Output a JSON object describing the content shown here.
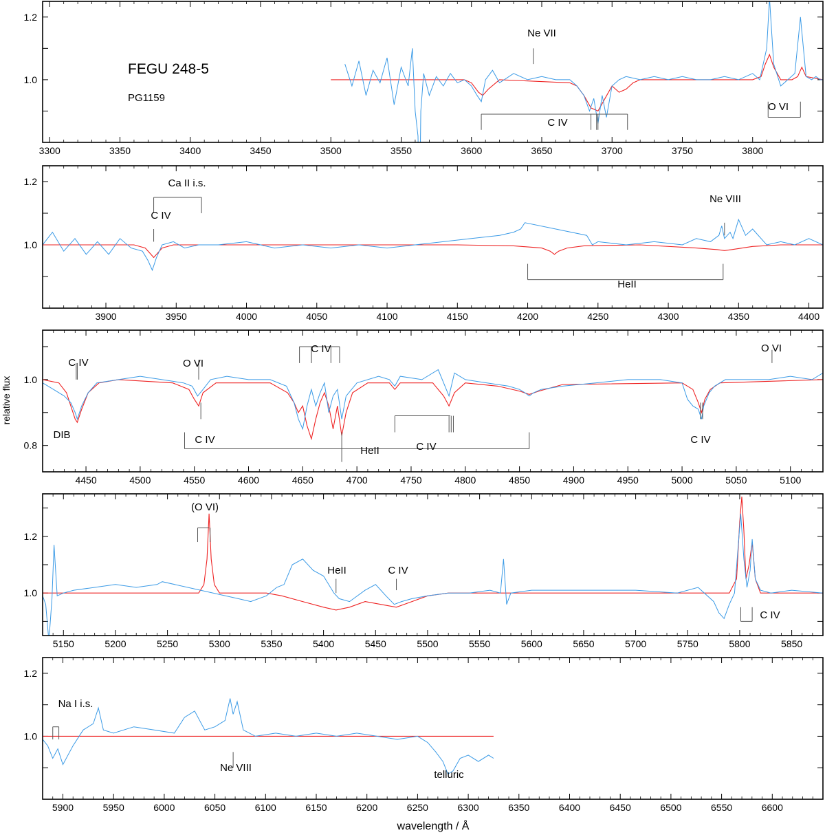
{
  "figure": {
    "star_name": "FEGU 248-5",
    "star_class": "PG1159",
    "ylabel": "relative flux",
    "xlabel": "wavelength / Å",
    "colors": {
      "observed": "#3a9ae6",
      "model": "#ee2222",
      "marker": "#555555",
      "axis": "#000000"
    }
  },
  "chart_data": [
    {
      "type": "line",
      "panel": 1,
      "xlim": [
        3295,
        3850
      ],
      "ylim": [
        0.8,
        1.25
      ],
      "xticks": [
        3300,
        3350,
        3400,
        3450,
        3500,
        3550,
        3600,
        3650,
        3700,
        3750,
        3800
      ],
      "yticks": [
        1.0,
        1.2
      ],
      "ytick_labels": [
        "1.0",
        "1.2"
      ],
      "series": [],
      "observed": {
        "x": [
          3510,
          3515,
          3520,
          3525,
          3530,
          3535,
          3540,
          3545,
          3550,
          3555,
          3558,
          3560,
          3562,
          3563,
          3564,
          3566,
          3570,
          3575,
          3580,
          3585,
          3590,
          3595,
          3600,
          3604,
          3607,
          3610,
          3615,
          3620,
          3630,
          3640,
          3650,
          3660,
          3670,
          3675,
          3680,
          3684,
          3687,
          3690,
          3693,
          3696,
          3700,
          3705,
          3710,
          3720,
          3730,
          3740,
          3750,
          3760,
          3770,
          3780,
          3790,
          3800,
          3805,
          3810,
          3812,
          3815,
          3820,
          3825,
          3830,
          3834,
          3838,
          3842,
          3845,
          3848,
          3850
        ],
        "y": [
          1.05,
          0.98,
          1.06,
          0.95,
          1.03,
          0.99,
          1.07,
          0.92,
          1.04,
          0.98,
          1.1,
          0.9,
          0.82,
          0.55,
          0.9,
          1.02,
          0.95,
          1.01,
          0.98,
          1.02,
          0.99,
          1.0,
          0.98,
          0.95,
          0.93,
          1.0,
          1.03,
          0.99,
          1.02,
          1.0,
          1.01,
          1.0,
          1.0,
          0.98,
          0.95,
          0.9,
          0.94,
          0.86,
          0.95,
          0.88,
          0.98,
          1.0,
          1.01,
          1.0,
          1.01,
          1.0,
          1.01,
          1.0,
          1.0,
          1.01,
          1.0,
          1.02,
          1.0,
          1.1,
          1.26,
          1.05,
          0.98,
          1.0,
          1.02,
          1.2,
          1.01,
          1.0,
          1.01,
          1.0,
          1.0
        ]
      },
      "model": {
        "x": [
          3500,
          3595,
          3600,
          3605,
          3608,
          3612,
          3620,
          3670,
          3675,
          3680,
          3685,
          3690,
          3695,
          3700,
          3705,
          3710,
          3715,
          3720,
          3800,
          3806,
          3809,
          3812,
          3815,
          3820,
          3828,
          3832,
          3835,
          3838,
          3850
        ],
        "y": [
          1.0,
          1.0,
          0.99,
          0.96,
          0.95,
          0.97,
          1.0,
          0.99,
          0.98,
          0.95,
          0.91,
          0.9,
          0.94,
          0.98,
          0.96,
          0.97,
          0.99,
          1.0,
          1.0,
          1.01,
          1.05,
          1.08,
          1.04,
          1.0,
          1.0,
          1.01,
          1.04,
          1.01,
          1.0
        ]
      },
      "annotations": [
        "Ne VII",
        "C IV",
        "O VI"
      ]
    },
    {
      "type": "line",
      "panel": 2,
      "xlim": [
        3855,
        4410
      ],
      "ylim": [
        0.8,
        1.25
      ],
      "xticks": [
        3900,
        3950,
        4000,
        4050,
        4100,
        4150,
        4200,
        4250,
        4300,
        4350,
        4400
      ],
      "yticks": [
        1.0,
        1.2
      ],
      "ytick_labels": [
        "1.0",
        "1.2"
      ],
      "series": [],
      "observed": {
        "x": [
          3855,
          3862,
          3870,
          3878,
          3886,
          3894,
          3902,
          3910,
          3918,
          3926,
          3930,
          3933,
          3936,
          3940,
          3948,
          3956,
          3966,
          3980,
          4000,
          4020,
          4040,
          4060,
          4080,
          4100,
          4120,
          4140,
          4160,
          4180,
          4190,
          4195,
          4198,
          4242,
          4246,
          4250,
          4270,
          4290,
          4310,
          4320,
          4330,
          4336,
          4338,
          4340,
          4344,
          4346,
          4350,
          4355,
          4360,
          4370,
          4380,
          4390,
          4400,
          4410
        ],
        "y": [
          1.0,
          1.04,
          0.98,
          1.02,
          0.97,
          1.01,
          0.97,
          1.02,
          0.99,
          0.98,
          0.95,
          0.92,
          0.96,
          1.0,
          1.01,
          0.99,
          1.0,
          1.0,
          1.01,
          0.99,
          1.0,
          0.99,
          1.0,
          0.99,
          1.0,
          1.01,
          1.02,
          1.03,
          1.04,
          1.05,
          1.07,
          1.03,
          1.0,
          1.01,
          1.0,
          1.01,
          1.0,
          1.02,
          1.01,
          1.03,
          1.06,
          1.02,
          1.04,
          1.02,
          1.08,
          1.03,
          1.05,
          1.0,
          1.01,
          1.0,
          1.02,
          1.0
        ]
      },
      "model": {
        "x": [
          3855,
          3920,
          3928,
          3932,
          3934,
          3936,
          3940,
          3948,
          4050,
          4150,
          4190,
          4210,
          4216,
          4219,
          4222,
          4228,
          4240,
          4280,
          4320,
          4335,
          4340,
          4345,
          4360,
          4380,
          4410
        ],
        "y": [
          1.0,
          1.0,
          0.99,
          0.97,
          0.96,
          0.97,
          0.99,
          1.0,
          1.0,
          1.0,
          0.997,
          0.99,
          0.98,
          0.97,
          0.98,
          0.99,
          0.997,
          1.0,
          0.99,
          0.985,
          0.982,
          0.985,
          0.995,
          1.0,
          1.0
        ]
      },
      "annotations": [
        "Ca II i.s.",
        "C IV",
        "Ne VIII",
        "HeII"
      ]
    },
    {
      "type": "line",
      "panel": 3,
      "xlim": [
        4410,
        5130
      ],
      "ylim": [
        0.72,
        1.15
      ],
      "xticks": [
        4450,
        4500,
        4550,
        4600,
        4650,
        4700,
        4750,
        4800,
        4850,
        4900,
        4950,
        5000,
        5050,
        5100
      ],
      "yticks": [
        0.8,
        1.0
      ],
      "ytick_labels": [
        "0.8",
        "1.0"
      ],
      "series": [],
      "observed": {
        "x": [
          4410,
          4420,
          4430,
          4436,
          4440,
          4442,
          4446,
          4452,
          4460,
          4480,
          4500,
          4520,
          4540,
          4548,
          4553,
          4558,
          4565,
          4580,
          4600,
          4620,
          4635,
          4642,
          4646,
          4650,
          4654,
          4658,
          4662,
          4666,
          4670,
          4674,
          4678,
          4682,
          4686,
          4690,
          4700,
          4720,
          4730,
          4735,
          4740,
          4760,
          4775,
          4780,
          4785,
          4790,
          4800,
          4820,
          4840,
          4850,
          4855,
          4859,
          4863,
          4870,
          4890,
          4920,
          4950,
          4980,
          5000,
          5005,
          5010,
          5015,
          5018,
          5020,
          5025,
          5030,
          5040,
          5060,
          5080,
          5100,
          5120,
          5130
        ],
        "y": [
          0.99,
          0.97,
          0.95,
          0.93,
          0.9,
          0.88,
          0.92,
          0.96,
          0.99,
          1.0,
          1.01,
          1.0,
          0.99,
          0.98,
          0.95,
          0.97,
          1.0,
          1.01,
          1.0,
          1.0,
          0.98,
          0.93,
          0.88,
          0.85,
          0.92,
          0.97,
          0.92,
          0.96,
          0.99,
          0.9,
          0.95,
          0.97,
          0.88,
          0.95,
          0.99,
          1.01,
          1.0,
          0.98,
          1.01,
          1.0,
          1.03,
          0.99,
          0.95,
          1.02,
          1.0,
          0.99,
          0.98,
          0.97,
          0.96,
          0.95,
          0.96,
          0.97,
          0.98,
          0.99,
          1.0,
          1.0,
          0.99,
          0.94,
          0.92,
          0.91,
          0.88,
          0.92,
          0.96,
          0.98,
          1.0,
          1.0,
          1.0,
          1.01,
          1.0,
          1.02
        ]
      },
      "model": {
        "x": [
          4410,
          4425,
          4432,
          4436,
          4440,
          4442,
          4446,
          4452,
          4462,
          4480,
          4530,
          4545,
          4550,
          4554,
          4558,
          4570,
          4620,
          4636,
          4642,
          4646,
          4650,
          4654,
          4658,
          4662,
          4666,
          4670,
          4674,
          4678,
          4682,
          4686,
          4690,
          4696,
          4710,
          4730,
          4735,
          4740,
          4770,
          4780,
          4785,
          4790,
          4800,
          4830,
          4850,
          4859,
          4868,
          4890,
          5000,
          5010,
          5015,
          5018,
          5021,
          5026,
          5035,
          5130
        ],
        "y": [
          1.0,
          0.99,
          0.96,
          0.92,
          0.88,
          0.87,
          0.91,
          0.96,
          0.99,
          1.0,
          0.99,
          0.97,
          0.94,
          0.92,
          0.96,
          0.99,
          0.99,
          0.96,
          0.93,
          0.9,
          0.92,
          0.86,
          0.82,
          0.88,
          0.93,
          0.96,
          0.92,
          0.85,
          0.92,
          0.83,
          0.9,
          0.96,
          0.99,
          0.99,
          0.97,
          0.99,
          0.99,
          0.95,
          0.92,
          0.96,
          0.99,
          0.98,
          0.965,
          0.955,
          0.965,
          0.985,
          0.99,
          0.97,
          0.93,
          0.9,
          0.94,
          0.97,
          0.99,
          1.0
        ]
      },
      "annotations": [
        "C IV",
        "O VI",
        "C IV",
        "O VI",
        "DIB",
        "C IV",
        "C IV",
        "HeII",
        "C IV"
      ]
    },
    {
      "type": "line",
      "panel": 4,
      "xlim": [
        5130,
        5880
      ],
      "ylim": [
        0.85,
        1.35
      ],
      "xticks": [
        5150,
        5200,
        5250,
        5300,
        5350,
        5400,
        5450,
        5500,
        5550,
        5600,
        5650,
        5700,
        5750,
        5800,
        5850
      ],
      "yticks": [
        1.0,
        1.2
      ],
      "ytick_labels": [
        "1.0",
        "1.2"
      ],
      "series": [],
      "observed": {
        "x": [
          5130,
          5133,
          5136,
          5139,
          5141,
          5144,
          5150,
          5160,
          5180,
          5200,
          5220,
          5240,
          5245,
          5318,
          5330,
          5345,
          5355,
          5362,
          5370,
          5380,
          5390,
          5400,
          5410,
          5415,
          5425,
          5440,
          5450,
          5460,
          5468,
          5475,
          5485,
          5500,
          5520,
          5540,
          5560,
          5570,
          5573,
          5576,
          5580,
          5600,
          5650,
          5700,
          5740,
          5760,
          5775,
          5780,
          5785,
          5790,
          5795,
          5801,
          5804,
          5807,
          5810,
          5812,
          5815,
          5820,
          5830,
          5850,
          5880
        ],
        "y": [
          0.99,
          0.96,
          0.83,
          0.98,
          1.17,
          0.99,
          1.0,
          1.01,
          1.02,
          1.03,
          1.02,
          1.03,
          1.04,
          0.98,
          0.97,
          0.99,
          1.02,
          1.03,
          1.1,
          1.12,
          1.08,
          1.06,
          1.0,
          0.98,
          0.97,
          1.01,
          1.03,
          0.99,
          0.96,
          0.97,
          0.98,
          0.99,
          1.0,
          1.0,
          1.01,
          1.0,
          1.12,
          0.96,
          1.0,
          1.01,
          1.01,
          1.01,
          1.0,
          1.02,
          0.97,
          0.93,
          0.91,
          0.96,
          1.0,
          1.28,
          1.12,
          1.02,
          1.08,
          1.19,
          1.05,
          1.01,
          1.0,
          1.01,
          1.0
        ]
      },
      "model": {
        "x": [
          5130,
          5280,
          5285,
          5288,
          5290,
          5292,
          5295,
          5300,
          5345,
          5360,
          5380,
          5400,
          5412,
          5425,
          5440,
          5455,
          5470,
          5485,
          5500,
          5520,
          5600,
          5790,
          5797,
          5800,
          5802,
          5804,
          5806,
          5809,
          5812,
          5815,
          5820,
          5880
        ],
        "y": [
          1.0,
          1.0,
          1.03,
          1.12,
          1.28,
          1.12,
          1.03,
          1.0,
          1.0,
          0.99,
          0.97,
          0.95,
          0.94,
          0.95,
          0.97,
          0.96,
          0.95,
          0.97,
          0.99,
          1.0,
          1.0,
          1.0,
          1.05,
          1.25,
          1.34,
          1.22,
          1.05,
          1.1,
          1.18,
          1.05,
          1.0,
          1.0
        ]
      },
      "annotations": [
        "(O VI)",
        "HeII",
        "C IV",
        "C IV"
      ]
    },
    {
      "type": "line",
      "panel": 5,
      "xlim": [
        5880,
        6650
      ],
      "ylim": [
        0.8,
        1.25
      ],
      "xticks": [
        5900,
        5950,
        6000,
        6050,
        6100,
        6150,
        6200,
        6250,
        6300,
        6350,
        6400,
        6450,
        6500,
        6550,
        6600
      ],
      "yticks": [
        1.0,
        1.2
      ],
      "ytick_labels": [
        "1.0",
        "1.2"
      ],
      "series": [],
      "observed": {
        "x": [
          5880,
          5885,
          5890,
          5895,
          5900,
          5910,
          5920,
          5930,
          5935,
          5940,
          5950,
          5970,
          5990,
          6010,
          6020,
          6030,
          6040,
          6050,
          6060,
          6065,
          6068,
          6072,
          6078,
          6090,
          6110,
          6130,
          6150,
          6170,
          6190,
          6210,
          6230,
          6250,
          6260,
          6268,
          6275,
          6280,
          6285,
          6292,
          6300,
          6310,
          6320,
          6325
        ],
        "y": [
          0.99,
          0.97,
          0.93,
          0.96,
          0.91,
          0.97,
          1.02,
          1.04,
          1.09,
          1.02,
          1.01,
          1.03,
          1.02,
          1.01,
          1.06,
          1.08,
          1.02,
          1.03,
          1.05,
          1.12,
          1.07,
          1.11,
          1.02,
          1.0,
          1.01,
          1.0,
          1.01,
          1.0,
          1.01,
          1.0,
          0.99,
          1.0,
          0.98,
          0.95,
          0.92,
          0.88,
          0.89,
          0.93,
          0.94,
          0.92,
          0.94,
          0.93
        ]
      },
      "model": {
        "x": [
          5880,
          6325
        ],
        "y": [
          1.0,
          1.0
        ]
      },
      "annotations": [
        "Na I i.s.",
        "Ne VIII",
        "telluric"
      ]
    }
  ],
  "annotations": {
    "p1": {
      "ne7": "Ne VII",
      "civ": "C IV",
      "ovi": "O VI"
    },
    "p2": {
      "ca": "Ca II i.s.",
      "civ": "C IV",
      "ne8": "Ne VIII",
      "heii": "HeII"
    },
    "p3": {
      "civ_a": "C IV",
      "ovi_a": "O VI",
      "civ_top": "C IV",
      "ovi_b": "O VI",
      "dib": "DIB",
      "civ_b": "C IV",
      "civ_c": "C IV",
      "heii": "HeII",
      "civ_d": "C IV"
    },
    "p4": {
      "ovi": "(O VI)",
      "heii": "HeII",
      "civ_a": "C IV",
      "civ_b": "C IV"
    },
    "p5": {
      "na": "Na I i.s.",
      "ne8": "Ne VIII",
      "telluric": "telluric"
    }
  }
}
